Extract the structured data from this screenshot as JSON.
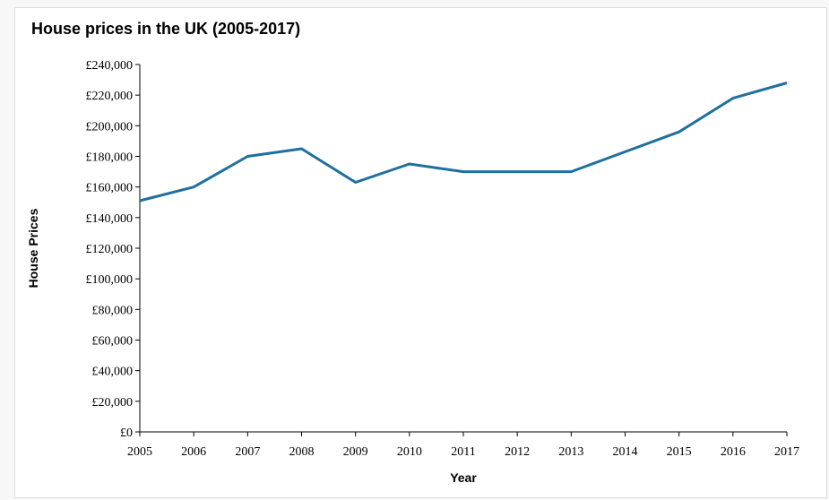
{
  "chart_data": {
    "type": "line",
    "title": "House prices in the UK (2005-2017)",
    "xlabel": "Year",
    "ylabel": "House Prices",
    "categories": [
      "2005",
      "2006",
      "2007",
      "2008",
      "2009",
      "2010",
      "2011",
      "2012",
      "2013",
      "2014",
      "2015",
      "2016",
      "2017"
    ],
    "series": [
      {
        "values": [
          151000,
          160000,
          180000,
          185000,
          163000,
          175000,
          170000,
          170000,
          170000,
          183000,
          196000,
          218000,
          228000
        ],
        "color": "#1f6f9f"
      }
    ],
    "ylim": [
      0,
      240000
    ],
    "yticks": [
      0,
      20000,
      40000,
      60000,
      80000,
      100000,
      120000,
      140000,
      160000,
      180000,
      200000,
      220000,
      240000
    ],
    "ytick_labels": [
      "£0",
      "£20,000",
      "£40,000",
      "£60,000",
      "£80,000",
      "£100,000",
      "£120,000",
      "£140,000",
      "£160,000",
      "£180,000",
      "£200,000",
      "£220,000",
      "£240,000"
    ],
    "grid": false,
    "legend": "none"
  }
}
